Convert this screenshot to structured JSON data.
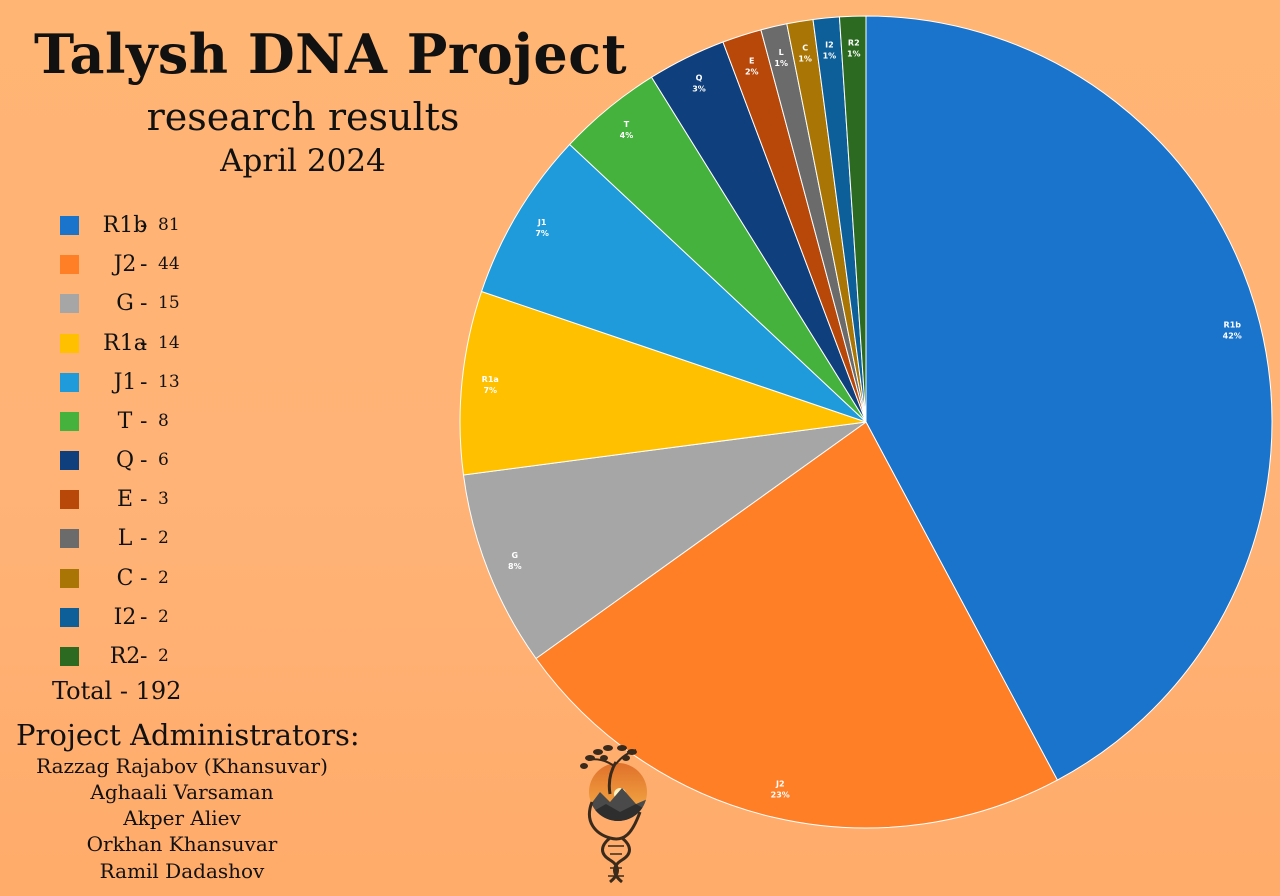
{
  "header": {
    "title": "Talysh DNA Project",
    "subtitle": "research results",
    "date": "April 2024"
  },
  "legend": {
    "items": [
      {
        "label": "R1b",
        "dash": "-",
        "count": "81",
        "color": "#1b74cb"
      },
      {
        "label": "J2",
        "dash": "-",
        "count": "44",
        "color": "#ff7f27"
      },
      {
        "label": "G",
        "dash": "-",
        "count": "15",
        "color": "#a6a6a6"
      },
      {
        "label": "R1a",
        "dash": "-",
        "count": "14",
        "color": "#ffc000"
      },
      {
        "label": "J1",
        "dash": "-",
        "count": "13",
        "color": "#1f9bdb"
      },
      {
        "label": "T",
        "dash": "-",
        "count": "8",
        "color": "#45b23d"
      },
      {
        "label": "Q",
        "dash": "-",
        "count": "6",
        "color": "#0f3f7c"
      },
      {
        "label": "E",
        "dash": "-",
        "count": "3",
        "color": "#b8470a"
      },
      {
        "label": "L",
        "dash": "-",
        "count": "2",
        "color": "#6b6b6b"
      },
      {
        "label": "C",
        "dash": "-",
        "count": "2",
        "color": "#a97605"
      },
      {
        "label": "I2",
        "dash": "-",
        "count": "2",
        "color": "#0d5f9a"
      },
      {
        "label": "R2",
        "dash": "-",
        "count": "2",
        "color": "#2b6a20"
      }
    ],
    "total": "Total - 192"
  },
  "admins": {
    "title": "Project Administrators:",
    "names": [
      "Razzag Rajabov (Khansuvar)",
      "Aghaali Varsaman",
      "Akper Aliev",
      "Orkhan Khansuvar",
      "Ramil Dadashov"
    ]
  },
  "chart_data": {
    "type": "pie",
    "categories": [
      "R1b",
      "J2",
      "G",
      "R1a",
      "J1",
      "T",
      "Q",
      "E",
      "L",
      "C",
      "I2",
      "R2"
    ],
    "values": [
      81,
      44,
      15,
      14,
      13,
      8,
      6,
      3,
      2,
      2,
      2,
      2
    ],
    "percent_labels": [
      "42%",
      "23%",
      "8%",
      "7%",
      "7%",
      "4%",
      "3%",
      "2%",
      "1%",
      "1%",
      "1%",
      "1%"
    ],
    "colors": [
      "#1b74cb",
      "#ff7f27",
      "#a6a6a6",
      "#ffc000",
      "#1f9bdb",
      "#45b23d",
      "#0f3f7c",
      "#b8470a",
      "#6b6b6b",
      "#a97605",
      "#0d5f9a",
      "#2b6a20"
    ],
    "start_angle": "12 o'clock, clockwise",
    "legend": "left"
  }
}
